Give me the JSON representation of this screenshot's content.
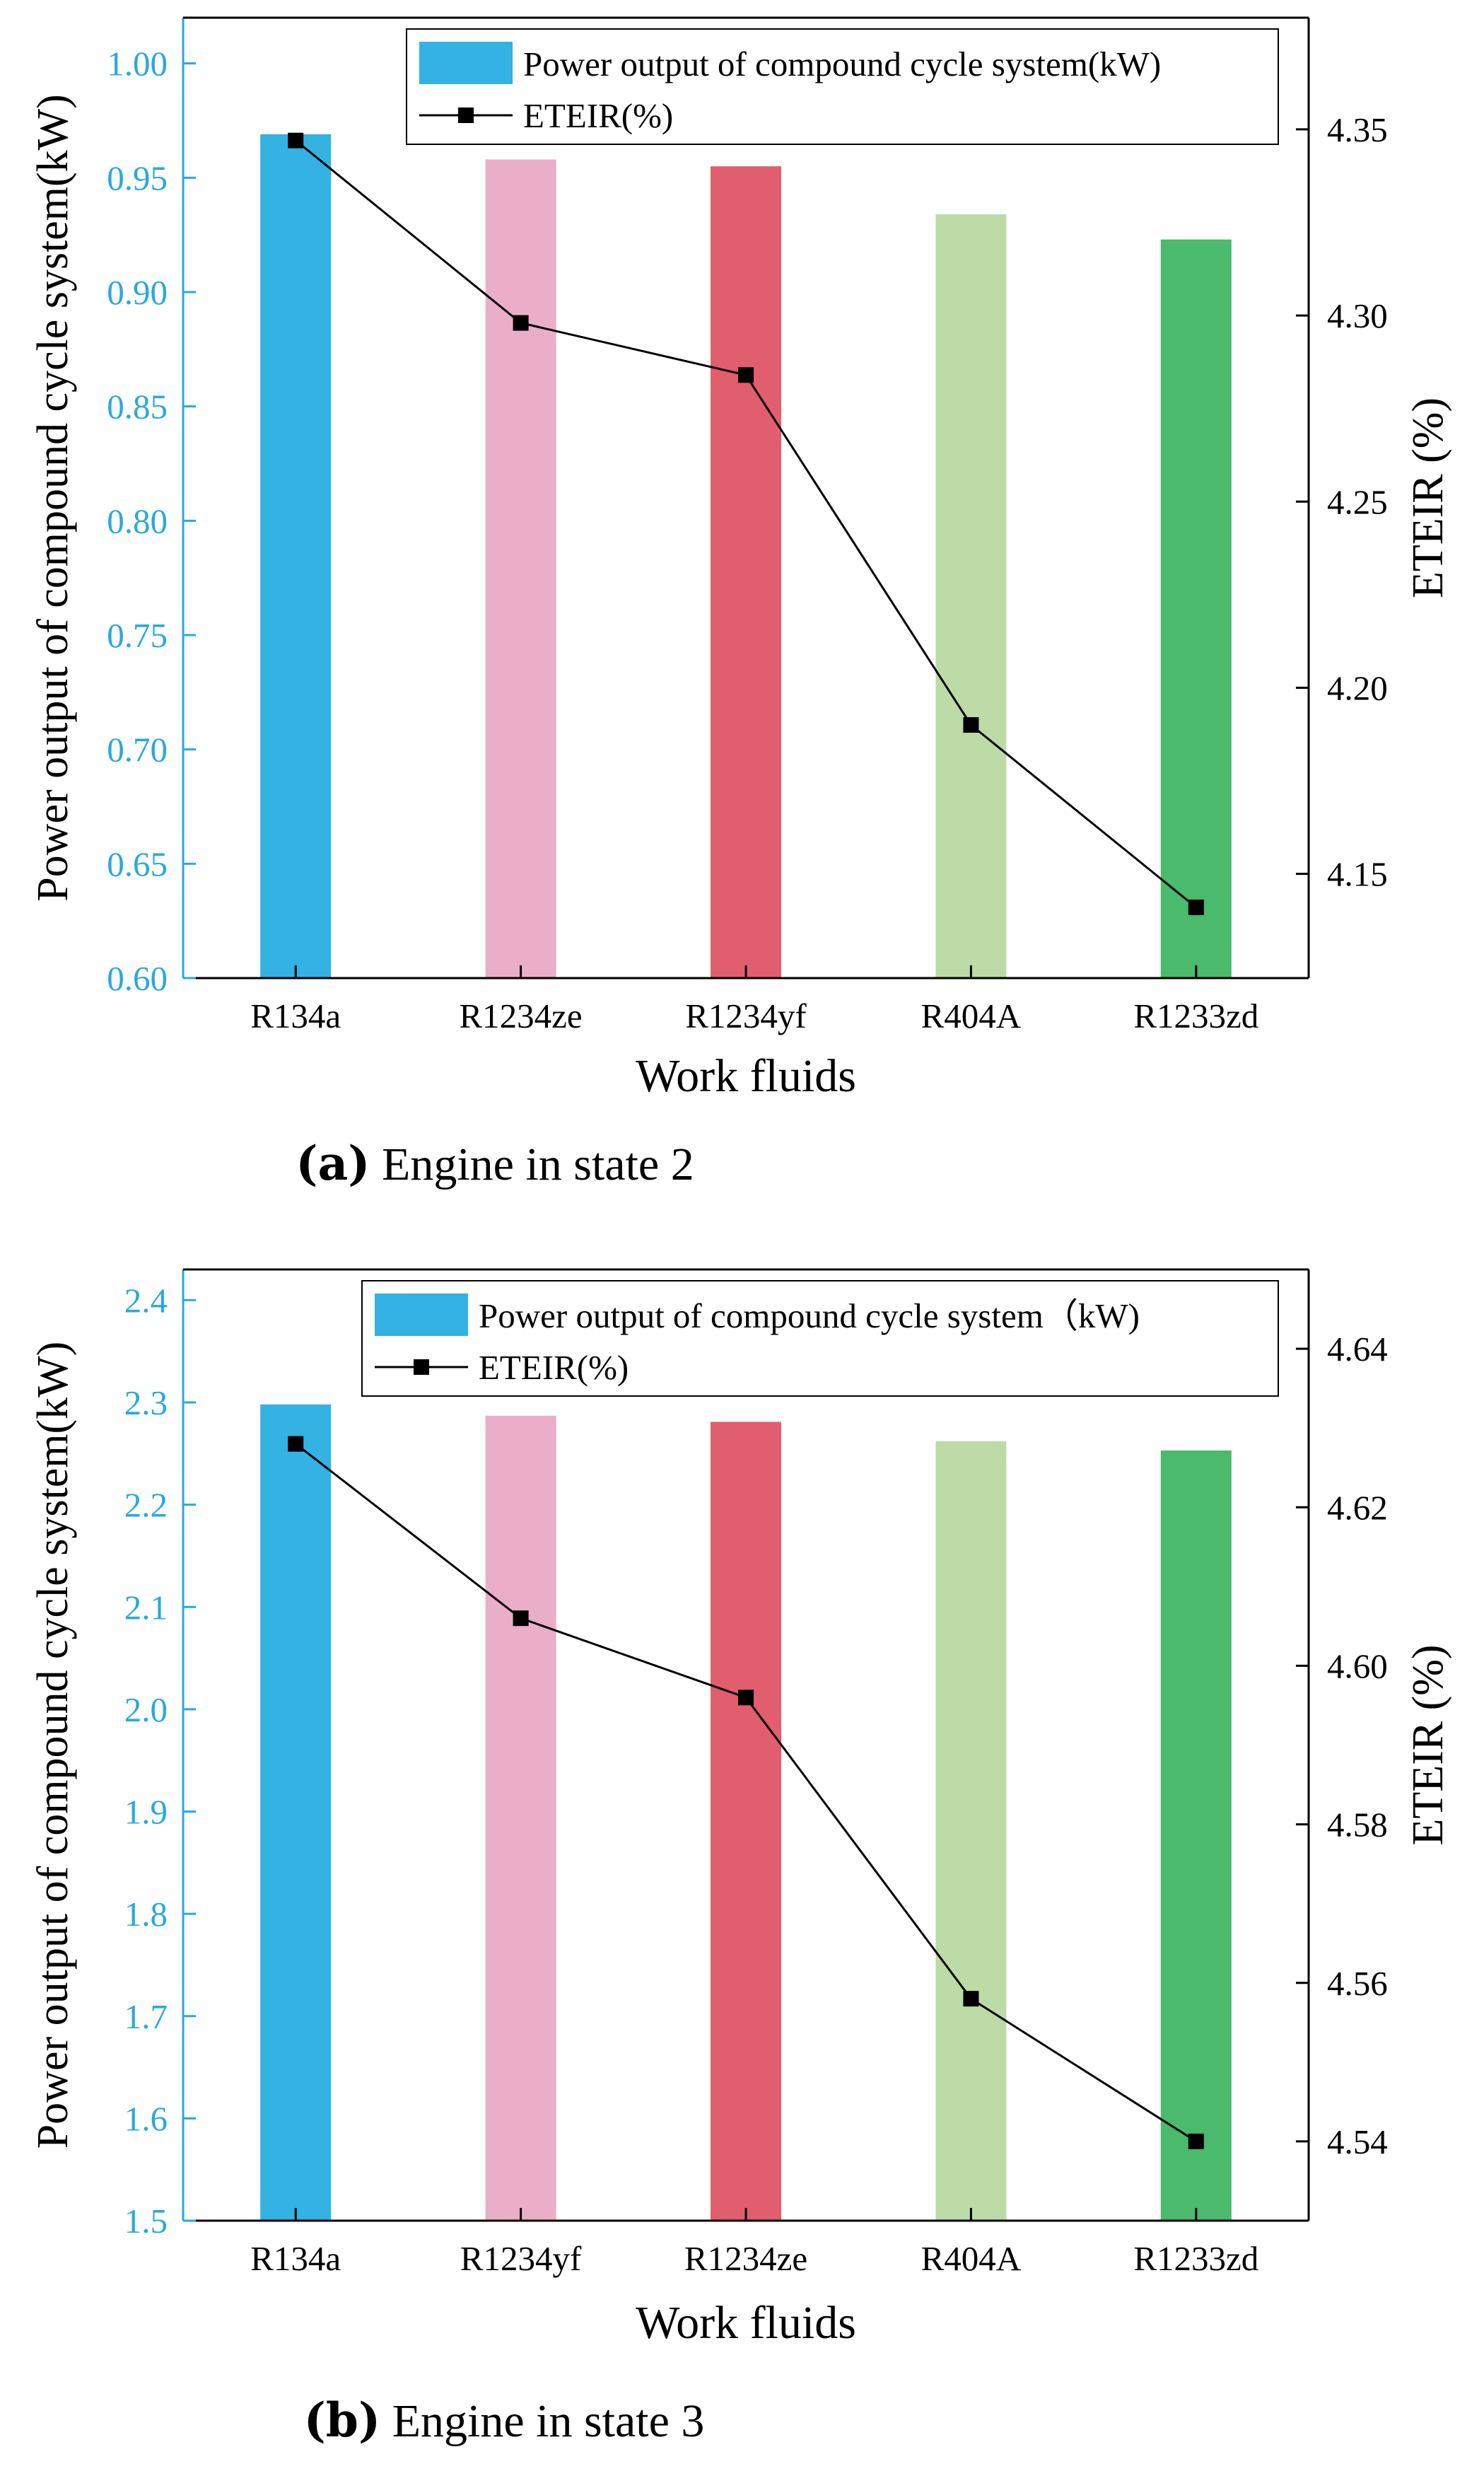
{
  "panels": [
    {
      "caption_label": "(a)",
      "caption_text": "Engine in state 2",
      "chart_data": {
        "type": "bar",
        "xlabel": "Work fluids",
        "ylabel": "Power output of compound cycle system(kW)",
        "y2label": "ETEIR (%)",
        "categories": [
          "R134a",
          "R1234ze",
          "R1234yf",
          "R404A",
          "R1233zd"
        ],
        "ylim": [
          0.6,
          1.02
        ],
        "yticks": [
          "0.60",
          "0.65",
          "0.70",
          "0.75",
          "0.80",
          "0.85",
          "0.90",
          "0.95",
          "1.00"
        ],
        "y2lim": [
          4.122,
          4.38
        ],
        "y2ticks": [
          "4.15",
          "4.20",
          "4.25",
          "4.30",
          "4.35"
        ],
        "legend_location": "top-right",
        "series": [
          {
            "name": "Power output of compound cycle system(kW)",
            "type": "bar",
            "axis": "left",
            "values": [
              0.969,
              0.958,
              0.955,
              0.934,
              0.923
            ],
            "colors": [
              "#33b2e3",
              "#ebaec8",
              "#e05e6e",
              "#bcdba6",
              "#4aba6c"
            ]
          },
          {
            "name": "ETEIR(%)",
            "type": "line",
            "axis": "right",
            "values": [
              4.347,
              4.298,
              4.284,
              4.19,
              4.141
            ],
            "color": "#000000"
          }
        ]
      }
    },
    {
      "caption_label": "(b)",
      "caption_text": "Engine in state 3",
      "chart_data": {
        "type": "bar",
        "xlabel": "Work fluids",
        "ylabel": "Power output of compound cycle system(kW)",
        "y2label": "ETEIR (%)",
        "categories": [
          "R134a",
          "R1234yf",
          "R1234ze",
          "R404A",
          "R1233zd"
        ],
        "ylim": [
          1.5,
          2.43
        ],
        "yticks": [
          "1.5",
          "1.6",
          "1.7",
          "1.8",
          "1.9",
          "2.0",
          "2.1",
          "2.2",
          "2.3",
          "2.4"
        ],
        "y2lim": [
          4.53,
          4.65
        ],
        "y2ticks": [
          "4.54",
          "4.56",
          "4.58",
          "4.60",
          "4.62",
          "4.64"
        ],
        "legend_location": "top-right",
        "series": [
          {
            "name": "Power output of compound cycle system（kW)",
            "type": "bar",
            "axis": "left",
            "values": [
              2.298,
              2.287,
              2.281,
              2.262,
              2.253
            ],
            "colors": [
              "#33b2e3",
              "#ebaec8",
              "#e05e6e",
              "#bcdba6",
              "#4aba6c"
            ]
          },
          {
            "name": "ETEIR(%)",
            "type": "line",
            "axis": "right",
            "values": [
              4.628,
              4.606,
              4.596,
              4.558,
              4.54
            ],
            "color": "#000000"
          }
        ]
      }
    }
  ],
  "colors": {
    "left_axis": "#29a8e0",
    "axis": "#000000",
    "line": "#000000"
  }
}
